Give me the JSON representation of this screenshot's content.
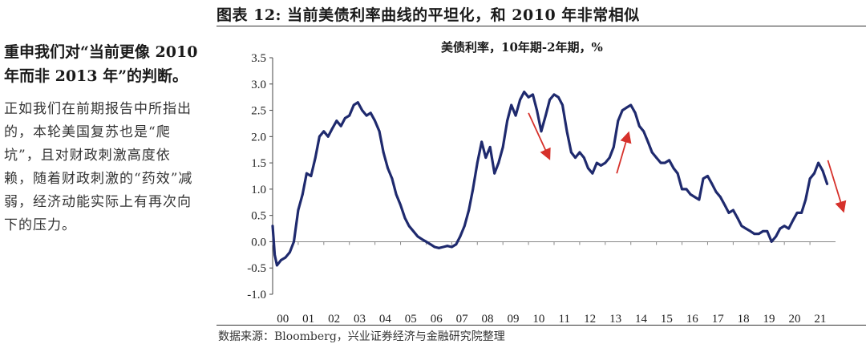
{
  "figure": {
    "title": "图表 12: 当前美债利率曲线的平坦化，和 2010 年非常相似",
    "source": "数据来源：Bloomberg，兴业证券经济与金融研究院整理"
  },
  "sidebar": {
    "lead": "重申我们对“当前更像 2010 年而非 2013 年”的判断。",
    "body": "正如我们在前期报告中所指出的，本轮美国复苏也是“爬坑”，且对财政刺激高度依赖，随着财政刺激的“药效”减弱，经济动能实际上有再次向下的压力。"
  },
  "chart_data": {
    "type": "line",
    "title": "美债利率，10年期-2年期，%",
    "xlabel": "",
    "ylabel": "",
    "ylim": [
      -1.0,
      3.5
    ],
    "xlim": [
      2000.0,
      2022.0
    ],
    "y_ticks": [
      "3.5",
      "3.0",
      "2.5",
      "2.0",
      "1.5",
      "1.0",
      "0.5",
      "0.0",
      "-0.5",
      "-1.0"
    ],
    "x_ticks": [
      "00",
      "01",
      "02",
      "03",
      "04",
      "05",
      "06",
      "07",
      "08",
      "09",
      "10",
      "11",
      "12",
      "13",
      "14",
      "15",
      "16",
      "17",
      "18",
      "19",
      "20",
      "21"
    ],
    "grid": false,
    "line_color": "#1f2a6e",
    "arrow_color": "#d6312b",
    "series": [
      {
        "x": [
          2000.0,
          2000.08,
          2000.17,
          2000.33,
          2000.5,
          2000.67,
          2000.83,
          2001.0,
          2001.17,
          2001.33,
          2001.5,
          2001.67,
          2001.83,
          2002.0,
          2002.17,
          2002.33,
          2002.5,
          2002.67,
          2002.83,
          2003.0,
          2003.17,
          2003.33,
          2003.5,
          2003.67,
          2003.83,
          2004.0,
          2004.17,
          2004.33,
          2004.5,
          2004.67,
          2004.83,
          2005.0,
          2005.17,
          2005.33,
          2005.5,
          2005.67,
          2005.83,
          2006.0,
          2006.17,
          2006.33,
          2006.5,
          2006.67,
          2006.83,
          2007.0,
          2007.17,
          2007.33,
          2007.5,
          2007.67,
          2007.83,
          2008.0,
          2008.17,
          2008.33,
          2008.5,
          2008.67,
          2008.83,
          2009.0,
          2009.17,
          2009.33,
          2009.5,
          2009.67,
          2009.83,
          2010.0,
          2010.17,
          2010.33,
          2010.5,
          2010.67,
          2010.83,
          2011.0,
          2011.17,
          2011.33,
          2011.5,
          2011.67,
          2011.83,
          2012.0,
          2012.17,
          2012.33,
          2012.5,
          2012.67,
          2012.83,
          2013.0,
          2013.17,
          2013.33,
          2013.5,
          2013.67,
          2013.83,
          2014.0,
          2014.17,
          2014.33,
          2014.5,
          2014.67,
          2014.83,
          2015.0,
          2015.17,
          2015.33,
          2015.5,
          2015.67,
          2015.83,
          2016.0,
          2016.17,
          2016.33,
          2016.5,
          2016.67,
          2016.83,
          2017.0,
          2017.17,
          2017.33,
          2017.5,
          2017.67,
          2017.83,
          2018.0,
          2018.17,
          2018.33,
          2018.5,
          2018.67,
          2018.83,
          2019.0,
          2019.17,
          2019.33,
          2019.5,
          2019.67,
          2019.83,
          2020.0,
          2020.17,
          2020.33,
          2020.5,
          2020.67,
          2020.83,
          2021.0,
          2021.17,
          2021.33,
          2021.5,
          2021.67
        ],
        "values": [
          0.3,
          -0.25,
          -0.45,
          -0.35,
          -0.3,
          -0.2,
          0.0,
          0.6,
          0.9,
          1.3,
          1.25,
          1.6,
          2.0,
          2.1,
          2.0,
          2.15,
          2.3,
          2.2,
          2.35,
          2.4,
          2.6,
          2.65,
          2.5,
          2.4,
          2.45,
          2.3,
          2.1,
          1.7,
          1.4,
          1.2,
          0.9,
          0.7,
          0.45,
          0.3,
          0.2,
          0.1,
          0.05,
          0.0,
          -0.05,
          -0.1,
          -0.12,
          -0.1,
          -0.08,
          -0.1,
          -0.05,
          0.1,
          0.3,
          0.6,
          1.0,
          1.5,
          1.9,
          1.6,
          1.8,
          1.3,
          1.5,
          1.8,
          2.3,
          2.6,
          2.4,
          2.7,
          2.85,
          2.75,
          2.8,
          2.5,
          2.1,
          2.4,
          2.7,
          2.8,
          2.75,
          2.6,
          2.1,
          1.7,
          1.6,
          1.7,
          1.6,
          1.4,
          1.3,
          1.5,
          1.45,
          1.5,
          1.6,
          1.8,
          2.3,
          2.5,
          2.55,
          2.6,
          2.45,
          2.2,
          2.1,
          1.9,
          1.7,
          1.6,
          1.5,
          1.5,
          1.55,
          1.4,
          1.3,
          1.0,
          1.0,
          0.9,
          0.85,
          0.8,
          1.2,
          1.25,
          1.1,
          0.95,
          0.85,
          0.7,
          0.55,
          0.6,
          0.45,
          0.3,
          0.25,
          0.2,
          0.15,
          0.15,
          0.2,
          0.2,
          0.0,
          0.1,
          0.25,
          0.3,
          0.25,
          0.4,
          0.55,
          0.55,
          0.8,
          1.2,
          1.3,
          1.5,
          1.35,
          1.1
        ]
      }
    ],
    "annotations": [
      {
        "type": "arrow",
        "direction": "down",
        "from": [
          2010.0,
          2.45
        ],
        "to": [
          2010.8,
          1.6
        ]
      },
      {
        "type": "arrow",
        "direction": "up",
        "from": [
          2013.45,
          1.3
        ],
        "to": [
          2013.9,
          2.05
        ]
      },
      {
        "type": "arrow",
        "direction": "down",
        "from": [
          2021.7,
          1.55
        ],
        "to": [
          2022.3,
          0.6
        ]
      }
    ]
  }
}
